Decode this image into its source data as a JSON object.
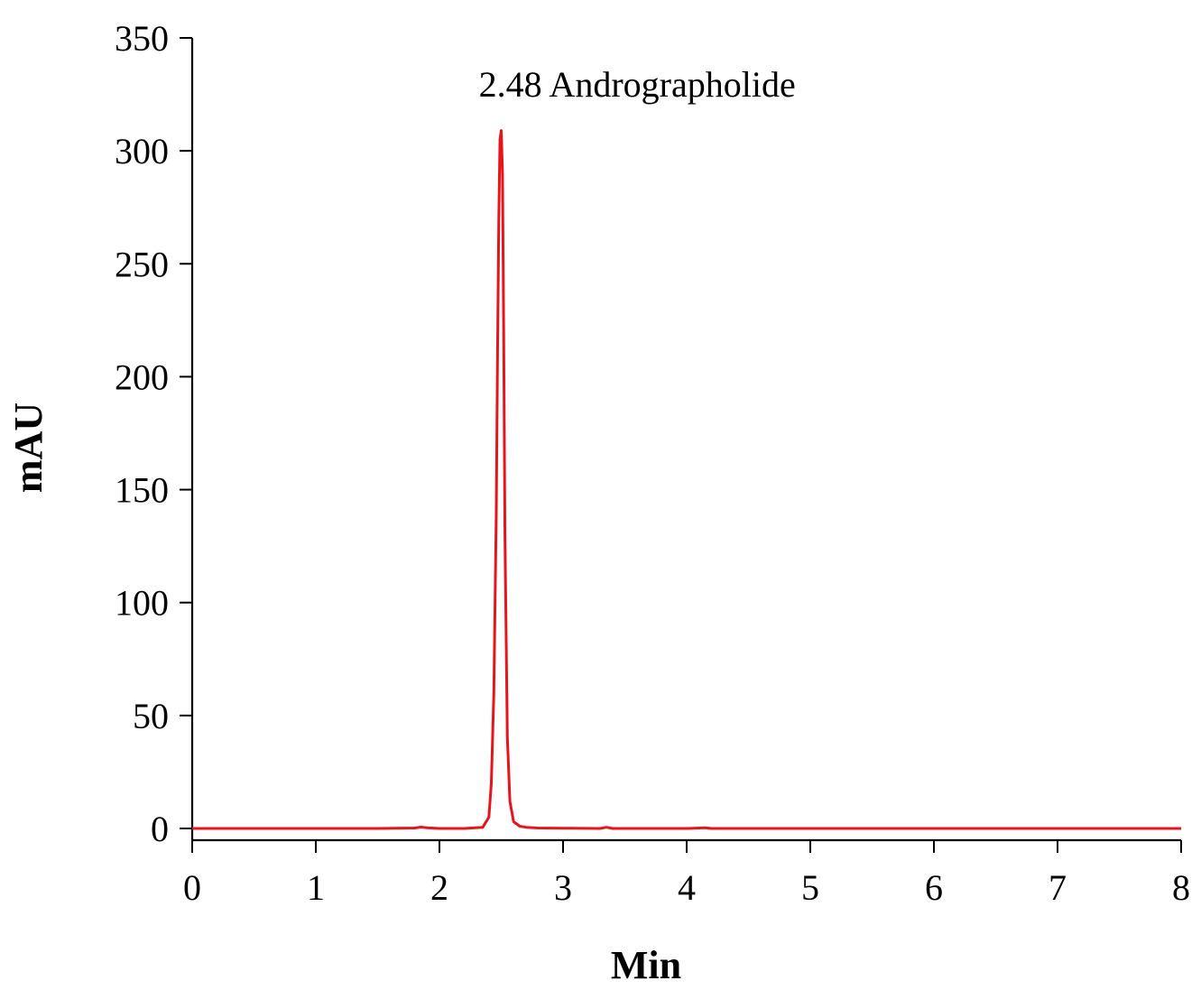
{
  "chart_data": {
    "type": "line",
    "title": "",
    "xlabel": "Min",
    "ylabel": "mAU",
    "xlim": [
      0,
      8
    ],
    "ylim": [
      0,
      350
    ],
    "xticks": [
      0,
      1,
      2,
      3,
      4,
      5,
      6,
      7,
      8
    ],
    "yticks": [
      0,
      50,
      100,
      150,
      200,
      250,
      300,
      350
    ],
    "grid": false,
    "series": [
      {
        "color": "#e8141c",
        "x": [
          0,
          0.5,
          1.0,
          1.5,
          1.8,
          1.85,
          1.9,
          2.0,
          2.2,
          2.35,
          2.4,
          2.42,
          2.44,
          2.46,
          2.47,
          2.48,
          2.49,
          2.5,
          2.51,
          2.52,
          2.53,
          2.55,
          2.57,
          2.6,
          2.65,
          2.7,
          2.8,
          3.0,
          3.3,
          3.35,
          3.4,
          4.0,
          4.15,
          4.2,
          4.3,
          5.0,
          6.0,
          7.0,
          8.0
        ],
        "values": [
          0,
          0,
          0,
          0,
          0.2,
          0.6,
          0.3,
          0,
          0,
          0.5,
          5,
          20,
          60,
          140,
          210,
          270,
          305,
          309,
          290,
          220,
          130,
          40,
          12,
          3,
          1,
          0.5,
          0.2,
          0.1,
          0,
          0.5,
          0,
          0,
          0.3,
          0,
          0,
          0,
          0,
          0,
          0
        ]
      }
    ],
    "annotations": [
      {
        "text": "2.48 Andrographolide",
        "x": 3.6,
        "y": 324
      }
    ]
  }
}
